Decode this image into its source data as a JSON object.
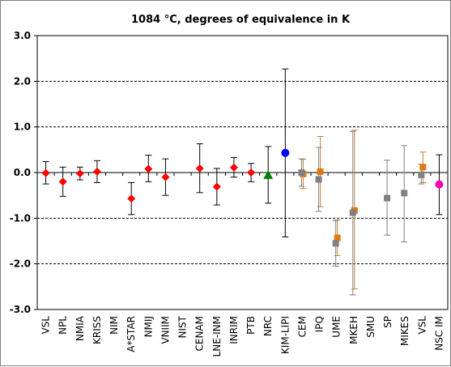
{
  "chart_data": {
    "type": "scatter",
    "title": "1084 °C, degrees of equivalence in K",
    "xlabel": "",
    "ylabel": "",
    "ylim": [
      -3.0,
      3.0
    ],
    "yticks": [
      "3.0",
      "2.0",
      "1.0",
      "0.0",
      "-1.0",
      "-2.0",
      "-3.0"
    ],
    "ytick_values": [
      3,
      2,
      1,
      0,
      -1,
      -2,
      -3
    ],
    "grid": "dashed horizontal at ±1, ±2 and solid zero line",
    "categories": [
      "VSL",
      "NPL",
      "NMIA",
      "KRISS",
      "NIM",
      "A*STAR",
      "NMIJ",
      "VNIIM",
      "NIST",
      "CENAM",
      "LNE-INM",
      "INRIM",
      "PTB",
      "NRC",
      "KIM-LIPI",
      "CEM",
      "IPQ",
      "UME",
      "MKEH",
      "SMU",
      "SP",
      "MIKES",
      "VSL",
      "NSC IM"
    ],
    "colors": {
      "red_diamond": "#ff0000",
      "green_triangle": "#008000",
      "blue_circle": "#0000ff",
      "magenta_circle": "#ff00aa",
      "orange_square": "#e07a10",
      "gray_square": "#808080",
      "orange_errorbar": "#c08040",
      "gray_errorbar": "#808080",
      "black_errorbar": "#000000"
    },
    "series": [
      {
        "marker": "diamond",
        "color": "#ff0000",
        "errorbar_color": "#000000",
        "points": [
          {
            "category": "VSL",
            "value": -0.01,
            "low": -0.25,
            "high": 0.24
          },
          {
            "category": "NPL",
            "value": -0.2,
            "low": -0.52,
            "high": 0.12
          },
          {
            "category": "NMIA",
            "value": -0.02,
            "low": -0.16,
            "high": 0.12
          },
          {
            "category": "KRISS",
            "value": 0.02,
            "low": -0.22,
            "high": 0.26
          },
          {
            "category": "A*STAR",
            "value": -0.57,
            "low": -0.92,
            "high": -0.22
          },
          {
            "category": "NMIJ",
            "value": 0.08,
            "low": -0.2,
            "high": 0.38
          },
          {
            "category": "VNIIM",
            "value": -0.1,
            "low": -0.5,
            "high": 0.3
          },
          {
            "category": "CENAM",
            "value": 0.09,
            "low": -0.44,
            "high": 0.63
          },
          {
            "category": "LNE-INM",
            "value": -0.31,
            "low": -0.71,
            "high": 0.09
          },
          {
            "category": "INRIM",
            "value": 0.11,
            "low": -0.1,
            "high": 0.33
          },
          {
            "category": "PTB",
            "value": -0.0,
            "low": -0.2,
            "high": 0.2
          }
        ]
      },
      {
        "marker": "triangle",
        "color": "#008000",
        "errorbar_color": "#000000",
        "points": [
          {
            "category": "NRC",
            "value": -0.05,
            "low": -0.67,
            "high": 0.57
          }
        ]
      },
      {
        "marker": "circle",
        "color": "#0000ff",
        "errorbar_color": "#000000",
        "points": [
          {
            "category": "KIM-LIPI",
            "value": 0.43,
            "low": -1.41,
            "high": 2.27
          }
        ]
      },
      {
        "marker": "square",
        "color": "#e07a10",
        "errorbar_color": "#c08040",
        "points": [
          {
            "category": "CEM",
            "value": -0.03,
            "low": -0.35,
            "high": 0.29
          },
          {
            "category": "IPQ",
            "value": 0.02,
            "low": -0.75,
            "high": 0.79
          },
          {
            "category": "UME",
            "value": -1.43,
            "low": -1.82,
            "high": -1.04
          },
          {
            "category": "MKEH",
            "value": -0.83,
            "low": -2.55,
            "high": 0.93
          },
          {
            "category": "VSL",
            "value": 0.12,
            "low": -0.22,
            "high": 0.45
          }
        ]
      },
      {
        "marker": "square",
        "color": "#808080",
        "errorbar_color": "#808080",
        "points": [
          {
            "category": "CEM",
            "value": -0.0,
            "low": -0.3,
            "high": 0.3
          },
          {
            "category": "IPQ",
            "value": -0.15,
            "low": -0.85,
            "high": 0.55
          },
          {
            "category": "UME",
            "value": -1.55,
            "low": -2.05,
            "high": -1.05
          },
          {
            "category": "MKEH",
            "value": -0.88,
            "low": -2.68,
            "high": 0.9
          },
          {
            "category": "SP",
            "value": -0.56,
            "low": -1.37,
            "high": 0.27
          },
          {
            "category": "MIKES",
            "value": -0.45,
            "low": -1.52,
            "high": 0.59
          },
          {
            "category": "VSL",
            "value": -0.05,
            "low": -0.25,
            "high": 0.18
          }
        ]
      },
      {
        "marker": "circle",
        "color": "#ff00aa",
        "errorbar_color": "#000000",
        "points": [
          {
            "category": "NSC IM",
            "value": -0.26,
            "low": -0.92,
            "high": 0.39
          }
        ]
      }
    ],
    "legend": "none"
  }
}
